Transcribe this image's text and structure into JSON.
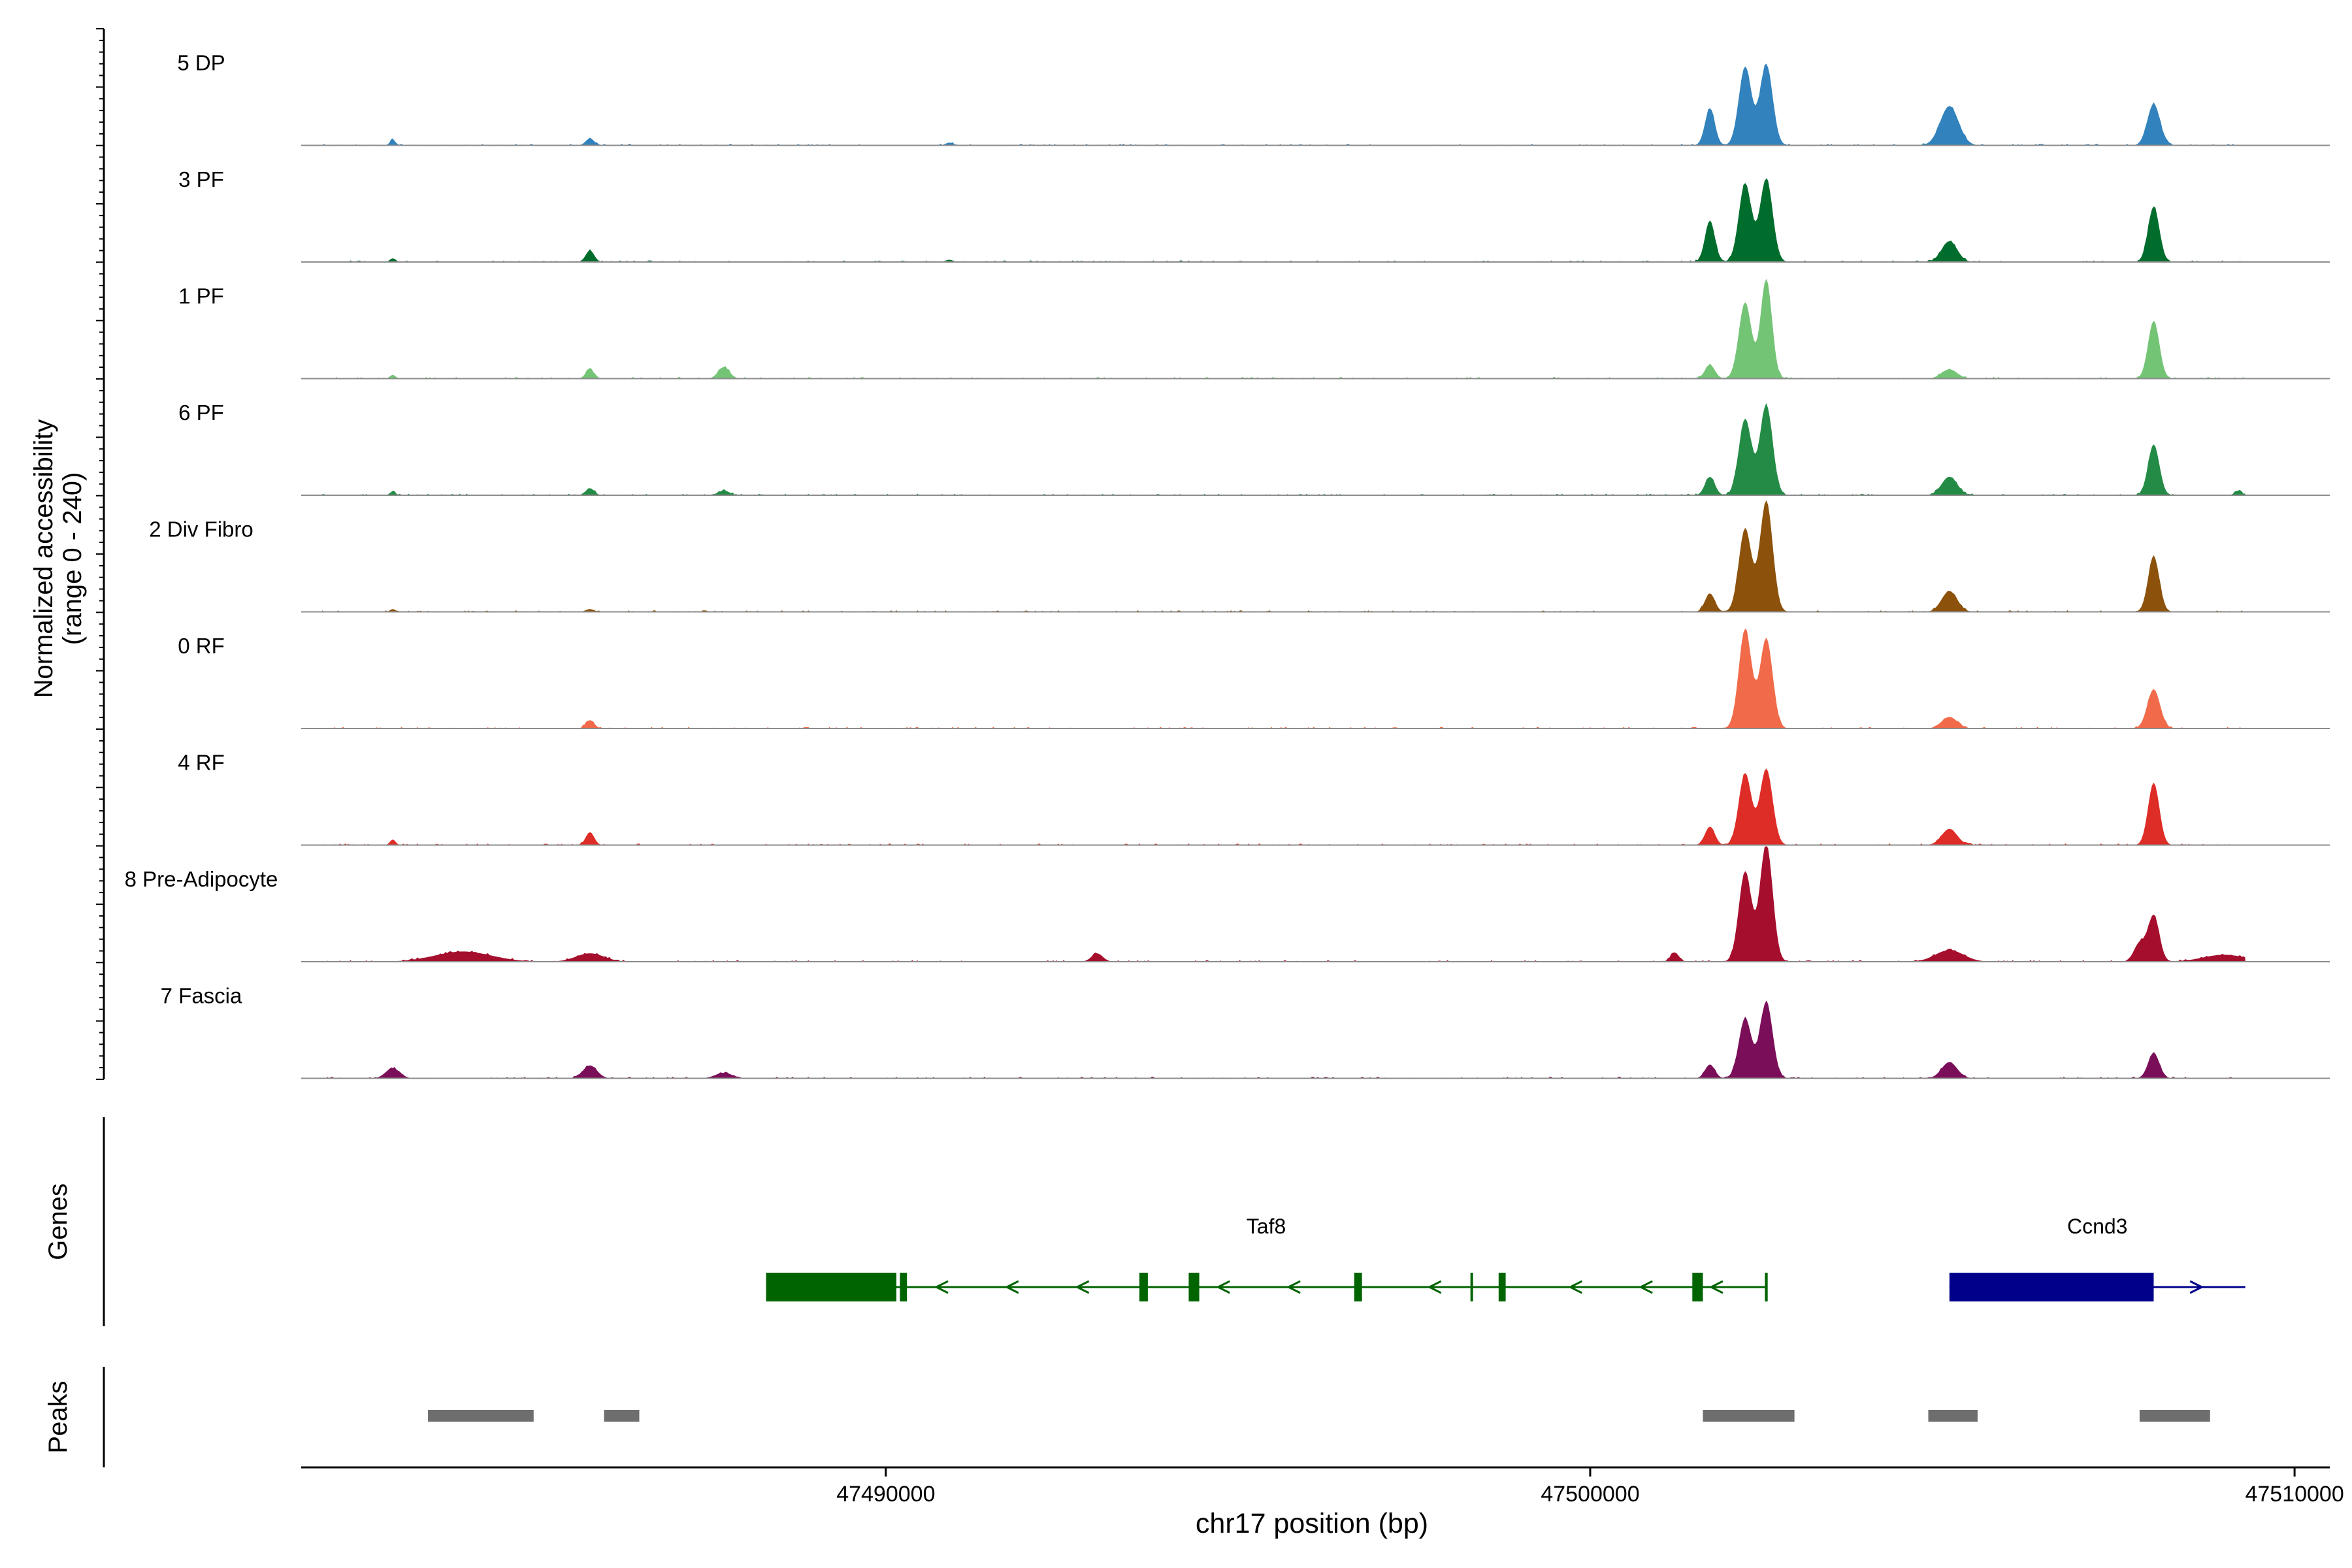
{
  "chart_data": {
    "type": "area",
    "title": "",
    "ylabel_line1": "Normalized accessibility",
    "ylabel_line2": "(range 0 - 240)",
    "xlabel": "chr17 position (bp)",
    "xlim": [
      47481700,
      47510500
    ],
    "ylim": [
      0,
      240
    ],
    "x_ticks": [
      47490000,
      47500000,
      47510000
    ],
    "x_tick_labels": [
      "47490000",
      "47500000",
      "47510000"
    ],
    "tracks": [
      {
        "name": "5 DP",
        "color": "#3182bd",
        "peaks": [
          [
            47483000,
            12,
            40
          ],
          [
            47485800,
            15,
            60
          ],
          [
            47490900,
            6,
            50
          ],
          [
            47501700,
            80,
            70
          ],
          [
            47502200,
            170,
            90
          ],
          [
            47502500,
            175,
            90
          ],
          [
            47505100,
            85,
            130
          ],
          [
            47508000,
            90,
            90
          ]
        ]
      },
      {
        "name": "3 PF",
        "color": "#006d2c",
        "peaks": [
          [
            47483000,
            8,
            40
          ],
          [
            47485800,
            25,
            60
          ],
          [
            47490900,
            5,
            50
          ],
          [
            47501700,
            90,
            70
          ],
          [
            47502200,
            170,
            90
          ],
          [
            47502500,
            180,
            90
          ],
          [
            47505100,
            45,
            110
          ],
          [
            47508000,
            120,
            80
          ]
        ]
      },
      {
        "name": "1 PF",
        "color": "#74c476",
        "peaks": [
          [
            47483000,
            8,
            40
          ],
          [
            47485800,
            20,
            60
          ],
          [
            47487700,
            25,
            80
          ],
          [
            47501700,
            30,
            70
          ],
          [
            47502200,
            165,
            90
          ],
          [
            47502500,
            215,
            80
          ],
          [
            47505100,
            20,
            110
          ],
          [
            47508000,
            125,
            80
          ]
        ]
      },
      {
        "name": "6 PF",
        "color": "#238b45",
        "peaks": [
          [
            47483000,
            8,
            40
          ],
          [
            47485800,
            15,
            60
          ],
          [
            47487700,
            10,
            80
          ],
          [
            47501700,
            40,
            70
          ],
          [
            47502200,
            165,
            90
          ],
          [
            47502500,
            195,
            90
          ],
          [
            47505100,
            40,
            110
          ],
          [
            47508000,
            110,
            80
          ],
          [
            47509200,
            10,
            50
          ]
        ]
      },
      {
        "name": "2 Div Fibro",
        "color": "#8c510a",
        "peaks": [
          [
            47483000,
            6,
            40
          ],
          [
            47485800,
            6,
            60
          ],
          [
            47501700,
            40,
            70
          ],
          [
            47502200,
            180,
            90
          ],
          [
            47502500,
            240,
            90
          ],
          [
            47505100,
            45,
            110
          ],
          [
            47508000,
            120,
            80
          ]
        ]
      },
      {
        "name": "0 RF",
        "color": "#f16a4a",
        "peaks": [
          [
            47485800,
            18,
            60
          ],
          [
            47502200,
            215,
            90
          ],
          [
            47502500,
            195,
            90
          ],
          [
            47505100,
            25,
            110
          ],
          [
            47508000,
            85,
            90
          ]
        ]
      },
      {
        "name": "4 RF",
        "color": "#de2d26",
        "peaks": [
          [
            47483000,
            12,
            40
          ],
          [
            47485800,
            28,
            60
          ],
          [
            47501700,
            40,
            70
          ],
          [
            47502200,
            155,
            90
          ],
          [
            47502500,
            165,
            90
          ],
          [
            47505100,
            35,
            110
          ],
          [
            47508000,
            135,
            80
          ]
        ]
      },
      {
        "name": "8 Pre-Adipocyte",
        "color": "#a50f2d",
        "peaks": [
          [
            47484000,
            22,
            400
          ],
          [
            47485800,
            18,
            200
          ],
          [
            47493000,
            18,
            80
          ],
          [
            47501200,
            20,
            60
          ],
          [
            47502200,
            195,
            90
          ],
          [
            47502500,
            255,
            90
          ],
          [
            47505100,
            25,
            200
          ],
          [
            47507800,
            40,
            80
          ],
          [
            47508000,
            100,
            80
          ],
          [
            47509000,
            15,
            300
          ]
        ]
      },
      {
        "name": "7 Fascia",
        "color": "#7b0e59",
        "peaks": [
          [
            47483000,
            22,
            100
          ],
          [
            47485800,
            28,
            100
          ],
          [
            47487700,
            12,
            120
          ],
          [
            47501700,
            30,
            70
          ],
          [
            47502200,
            130,
            90
          ],
          [
            47502500,
            165,
            90
          ],
          [
            47505100,
            35,
            110
          ],
          [
            47508000,
            55,
            80
          ]
        ]
      }
    ],
    "genes_label": "Genes",
    "genes": [
      {
        "name": "Taf8",
        "color": "#006400",
        "start": 47488300,
        "end": 47502500,
        "strand": "-",
        "exons": [
          [
            47488300,
            47490150
          ],
          [
            47490200,
            47490300
          ],
          [
            47493600,
            47493720
          ],
          [
            47494300,
            47494450
          ],
          [
            47496650,
            47496760
          ],
          [
            47498300,
            47498330
          ],
          [
            47498700,
            47498800
          ],
          [
            47501450,
            47501600
          ],
          [
            47502480,
            47502520
          ]
        ]
      },
      {
        "name": "Ccnd3",
        "color": "#00008b",
        "start": 47505100,
        "end": 47509300,
        "strand": "+",
        "exons": [
          [
            47505100,
            47508000
          ]
        ]
      }
    ],
    "peaks_label": "Peaks",
    "peak_regions": [
      [
        47483500,
        47485000
      ],
      [
        47486000,
        47486500
      ],
      [
        47501600,
        47502900
      ],
      [
        47504800,
        47505500
      ],
      [
        47507800,
        47508800
      ]
    ]
  }
}
